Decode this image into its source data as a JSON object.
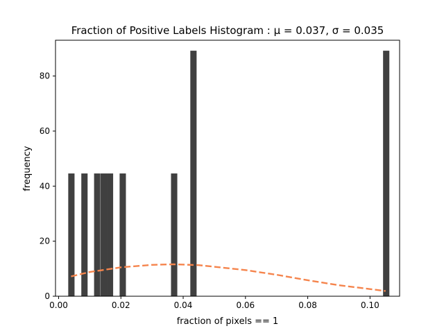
{
  "chart_data": {
    "type": "bar",
    "title": "Fraction of Positive Labels Histogram$:\\ \\mu=0.037,\\ \\sigma=0.035$",
    "title_display": "Fraction of Positive Labels Histogram :  μ = 0.037,  σ = 0.035",
    "xlabel": "fraction of pixels == 1",
    "ylabel": "frequency",
    "xlim": [
      -0.001,
      0.1095
    ],
    "ylim": [
      0,
      93
    ],
    "x_ticks": [
      0.0,
      0.02,
      0.04,
      0.06,
      0.08,
      0.1
    ],
    "x_tick_labels": [
      "0.00",
      "0.02",
      "0.04",
      "0.06",
      "0.08",
      "0.10"
    ],
    "y_ticks": [
      0,
      20,
      40,
      60,
      80
    ],
    "y_tick_labels": [
      "0",
      "20",
      "40",
      "60",
      "80"
    ],
    "bin_width": 0.00202,
    "bar_color": "#404040",
    "curve_color": "#f5844c",
    "bars": [
      {
        "x": 0.0041,
        "value": 44.6
      },
      {
        "x": 0.0083,
        "value": 44.6
      },
      {
        "x": 0.0124,
        "value": 44.6
      },
      {
        "x": 0.0145,
        "value": 44.6
      },
      {
        "x": 0.0165,
        "value": 44.6
      },
      {
        "x": 0.0206,
        "value": 44.6
      },
      {
        "x": 0.0371,
        "value": 44.6
      },
      {
        "x": 0.0433,
        "value": 89.2
      },
      {
        "x": 0.1052,
        "value": 89.2
      }
    ],
    "series": [
      {
        "type": "line",
        "style": "dashed",
        "x": [
          0.004,
          0.01,
          0.02,
          0.03,
          0.037,
          0.045,
          0.06,
          0.07,
          0.08,
          0.09,
          0.1,
          0.105
        ],
        "values": [
          7.2,
          8.8,
          10.5,
          11.4,
          11.6,
          11.3,
          9.5,
          7.8,
          5.8,
          4.0,
          2.6,
          1.9
        ]
      }
    ]
  }
}
